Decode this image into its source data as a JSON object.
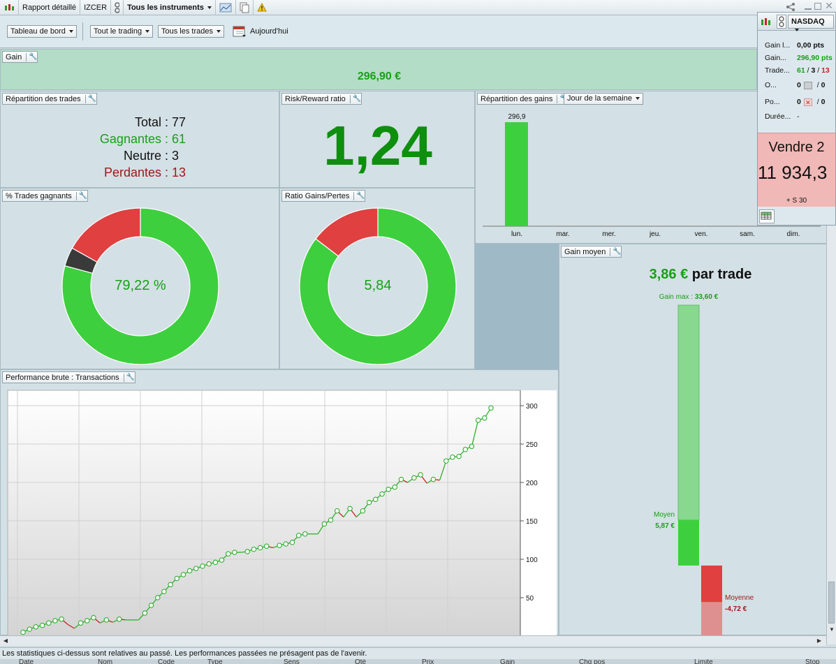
{
  "toolbar": {
    "report_label": "Rapport détaillé",
    "account": "IZCER",
    "instruments": "Tous les instruments"
  },
  "filters": {
    "dashboard": "Tableau de bord",
    "trading": "Tout le trading",
    "trades": "Tous les trades",
    "date": "Aujourd'hui"
  },
  "gain_panel": {
    "title": "Gain",
    "value": "296,90 €"
  },
  "repartition": {
    "title": "Répartition des trades",
    "total_label": "Total :",
    "total": "77",
    "winners_label": "Gagnantes :",
    "winners": "61",
    "neutral_label": "Neutre :",
    "neutral": "3",
    "losers_label": "Perdantes :",
    "losers": "13"
  },
  "risk_reward": {
    "title": "Risk/Reward ratio",
    "value": "1,24"
  },
  "win_pct": {
    "title": "% Trades gagnants",
    "center": "79,22 %"
  },
  "ratio": {
    "title": "Ratio Gains/Pertes",
    "center": "5,84"
  },
  "gains_day": {
    "title": "Répartition des gains",
    "selector": "Jour de la semaine"
  },
  "gain_moyen": {
    "title": "Gain moyen",
    "headline_value": "3,86 €",
    "headline_suffix": "par trade",
    "max_label": "Gain max :",
    "max_value": "33,60 €",
    "avg_gain_label": "Moyen",
    "avg_gain_value": "5,87 €",
    "avg_loss_label": "Moyenne",
    "avg_loss_value": "-4,72 €"
  },
  "perf": {
    "title": "Performance brute : Transactions"
  },
  "nasdaq": {
    "market": "NASDAQ",
    "rows": [
      {
        "label": "Gain l...",
        "value": "0,00 pts"
      },
      {
        "label": "Gain...",
        "value": "296,90 pts"
      },
      {
        "label": "Trade...",
        "v1": "61",
        "v2": "3",
        "v3": "13"
      },
      {
        "label": "O...",
        "v1": "0",
        "v2": "0"
      },
      {
        "label": "Po...",
        "v1": "0",
        "v2": "0"
      },
      {
        "label": "Durée...",
        "value": "-"
      }
    ],
    "order_action": "Vendre 2",
    "order_price": "11 934,3",
    "order_note": "+ S 30"
  },
  "status_text": "Les statistiques ci-dessus sont relatives au passé. Les performances passées ne présagent pas de l'avenir.",
  "table_headers": [
    "Date",
    "Nom",
    "Code",
    "Type",
    "Sens",
    "Qté",
    "Prix",
    "Gain",
    "Chg pos",
    "Limite",
    "Stop"
  ],
  "colors": {
    "green": "#3ecf3e",
    "dark_green": "#0e8f0e",
    "red": "#e04040",
    "dark_red": "#a01818",
    "gray": "#3a3a3a"
  },
  "chart_data": [
    {
      "type": "pie",
      "title": "% Trades gagnants",
      "slices": [
        {
          "label": "Gagnantes",
          "value": 61,
          "color": "#3ecf3e"
        },
        {
          "label": "Neutre",
          "value": 3,
          "color": "#3a3a3a"
        },
        {
          "label": "Perdantes",
          "value": 13,
          "color": "#e04040"
        }
      ]
    },
    {
      "type": "pie",
      "title": "Ratio Gains/Pertes",
      "slices": [
        {
          "label": "Gains",
          "value": 5.84,
          "color": "#3ecf3e"
        },
        {
          "label": "Pertes",
          "value": 1,
          "color": "#e04040"
        }
      ]
    },
    {
      "type": "bar",
      "title": "Répartition des gains",
      "categories": [
        "lun.",
        "mar.",
        "mer.",
        "jeu.",
        "ven.",
        "sam.",
        "dim."
      ],
      "values": [
        296.9,
        0,
        0,
        0,
        0,
        0,
        0
      ],
      "value_labels": [
        "296,9",
        "",
        "",
        "",
        "",
        "",
        ""
      ]
    },
    {
      "type": "line",
      "title": "Performance brute : Transactions",
      "ylim": [
        0,
        320
      ],
      "yticks": [
        50,
        100,
        150,
        200,
        250,
        300
      ],
      "values": [
        5,
        9,
        12,
        14,
        17,
        20,
        22,
        15,
        10,
        17,
        20,
        24,
        17,
        21,
        18,
        22,
        21,
        21,
        21,
        30,
        40,
        50,
        58,
        67,
        75,
        80,
        85,
        88,
        91,
        94,
        96,
        99,
        107,
        109,
        109,
        110,
        113,
        115,
        117,
        115,
        118,
        120,
        122,
        131,
        133,
        133,
        133,
        146,
        151,
        163,
        155,
        166,
        155,
        163,
        174,
        178,
        185,
        191,
        194,
        204,
        200,
        206,
        210,
        199,
        204,
        203,
        228,
        233,
        234,
        243,
        247,
        281,
        284,
        297
      ]
    },
    {
      "type": "bar",
      "title": "Gain moyen",
      "values": [
        {
          "label": "Gain max",
          "value": 33.6
        },
        {
          "label": "Moyen",
          "value": 5.87
        },
        {
          "label": "Moyenne",
          "value": -4.72
        }
      ]
    }
  ]
}
